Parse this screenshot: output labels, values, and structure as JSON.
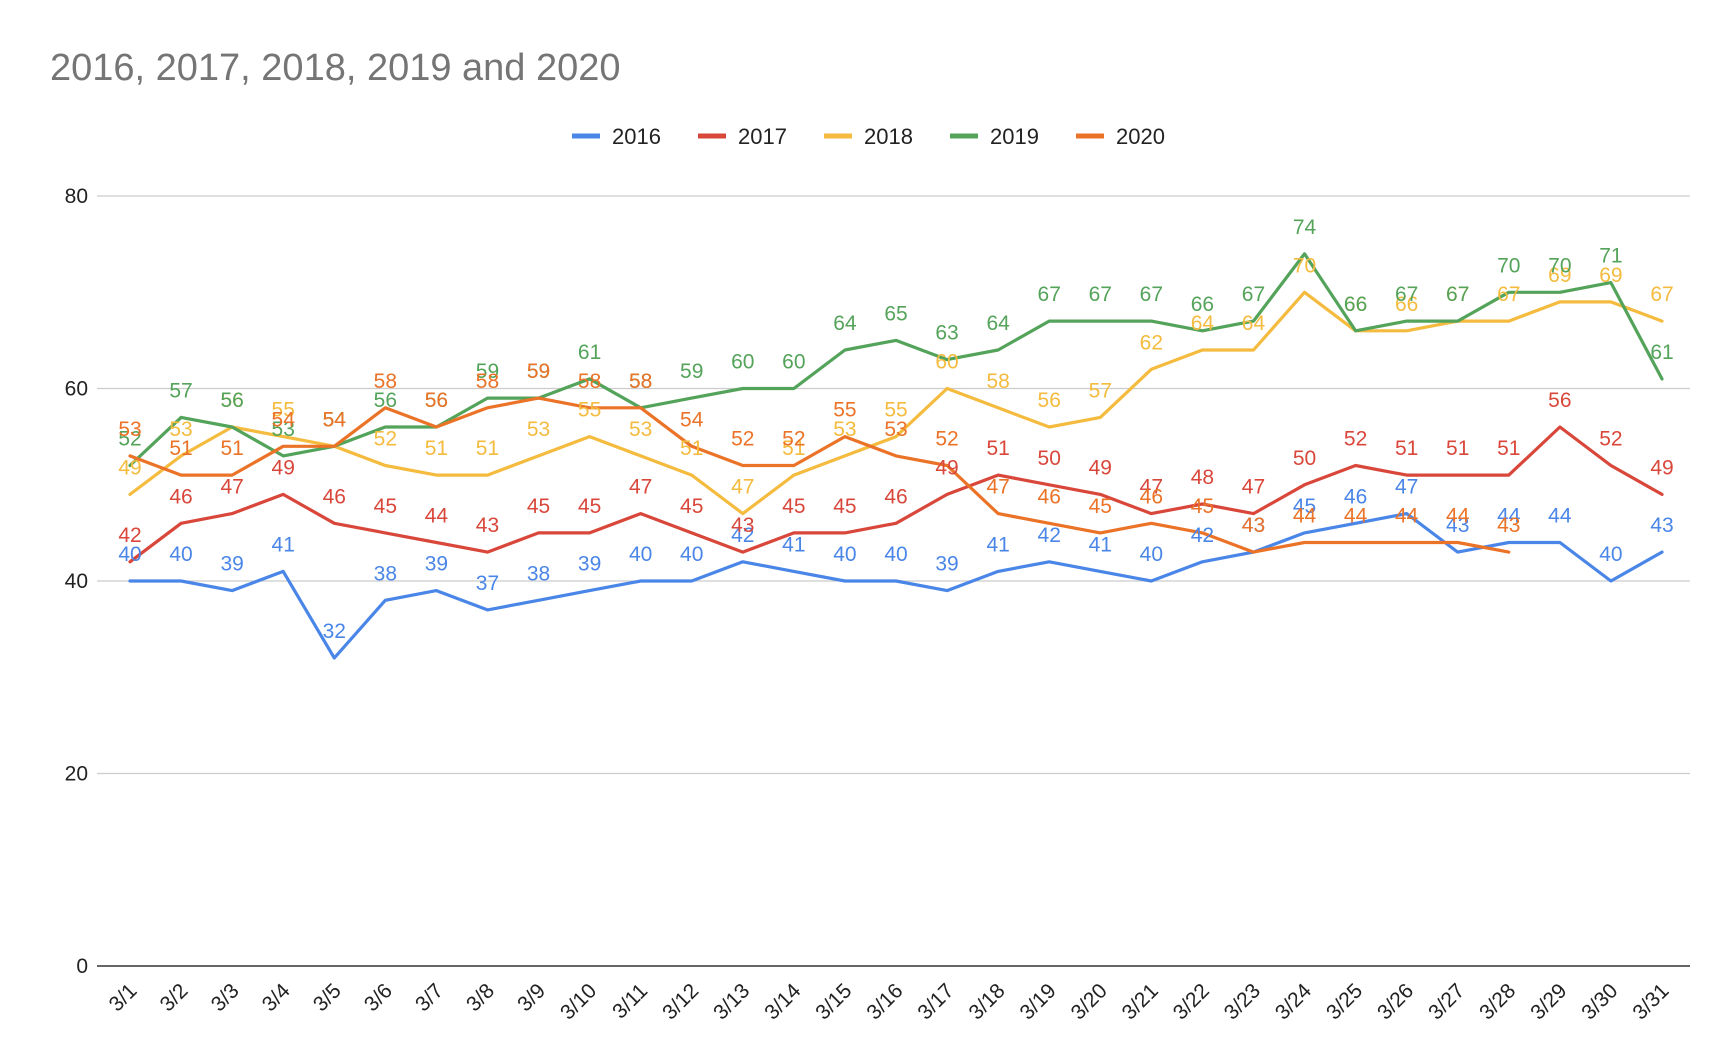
{
  "chart_data": {
    "type": "line",
    "title": "2016, 2017, 2018, 2019 and 2020",
    "xlabel": "",
    "ylabel": "",
    "ylim": [
      0,
      80
    ],
    "yticks": [
      0,
      20,
      40,
      60,
      80
    ],
    "grid": true,
    "legend": "top",
    "categories": [
      "3/1",
      "3/2",
      "3/3",
      "3/4",
      "3/5",
      "3/6",
      "3/7",
      "3/8",
      "3/9",
      "3/10",
      "3/11",
      "3/12",
      "3/13",
      "3/14",
      "3/15",
      "3/16",
      "3/17",
      "3/18",
      "3/19",
      "3/20",
      "3/21",
      "3/22",
      "3/23",
      "3/24",
      "3/25",
      "3/26",
      "3/27",
      "3/28",
      "3/29",
      "3/30",
      "3/31"
    ],
    "series": [
      {
        "name": "2016",
        "color": "#4a86e8",
        "values": [
          40,
          40,
          39,
          41,
          32,
          38,
          39,
          37,
          38,
          39,
          40,
          40,
          42,
          41,
          40,
          40,
          39,
          41,
          42,
          41,
          40,
          42,
          43,
          45,
          46,
          47,
          43,
          44,
          44,
          40,
          43
        ]
      },
      {
        "name": "2017",
        "color": "#d9473b",
        "values": [
          42,
          46,
          47,
          49,
          46,
          45,
          44,
          43,
          45,
          45,
          47,
          45,
          43,
          45,
          45,
          46,
          49,
          51,
          50,
          49,
          47,
          48,
          47,
          50,
          52,
          51,
          51,
          51,
          56,
          52,
          49
        ]
      },
      {
        "name": "2018",
        "color": "#f4bb3e",
        "values": [
          49,
          53,
          56,
          55,
          54,
          52,
          51,
          51,
          53,
          55,
          53,
          51,
          47,
          51,
          53,
          55,
          60,
          58,
          56,
          57,
          62,
          64,
          64,
          70,
          66,
          66,
          67,
          67,
          69,
          69,
          67
        ]
      },
      {
        "name": "2019",
        "color": "#54a35a",
        "values": [
          52,
          57,
          56,
          53,
          54,
          56,
          56,
          59,
          59,
          61,
          58,
          59,
          60,
          60,
          64,
          65,
          63,
          64,
          67,
          67,
          67,
          66,
          67,
          74,
          66,
          67,
          67,
          70,
          70,
          71,
          61
        ]
      },
      {
        "name": "2020",
        "color": "#eb7327",
        "values": [
          53,
          51,
          51,
          54,
          54,
          58,
          56,
          58,
          59,
          58,
          58,
          54,
          52,
          52,
          55,
          53,
          52,
          47,
          46,
          45,
          46,
          45,
          43,
          44,
          44,
          44,
          44,
          43,
          null,
          null,
          null
        ]
      }
    ]
  }
}
